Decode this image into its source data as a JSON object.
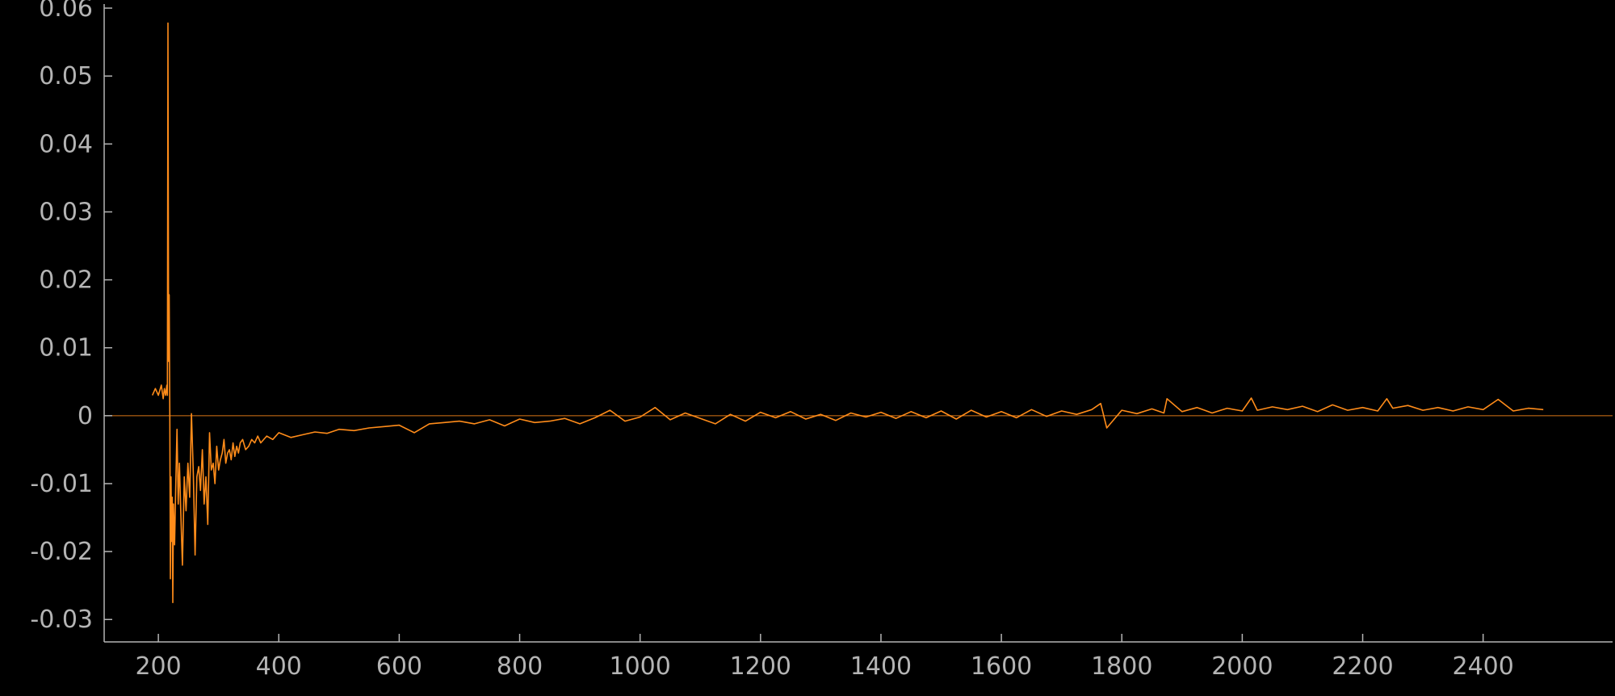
{
  "chart_data": {
    "type": "line",
    "title": "",
    "xlabel": "",
    "ylabel": "",
    "xlim": [
      110,
      2615
    ],
    "ylim": [
      -0.0333,
      0.0606
    ],
    "x_ticks": [
      200,
      400,
      600,
      800,
      1000,
      1200,
      1400,
      1600,
      1800,
      2000,
      2200,
      2400
    ],
    "x_tick_labels": [
      "200",
      "400",
      "600",
      "800",
      "1000",
      "1200",
      "1400",
      "1600",
      "1800",
      "2000",
      "2200",
      "2400"
    ],
    "y_ticks": [
      0.06,
      0.05,
      0.04,
      0.03,
      0.02,
      0.01,
      0,
      -0.01,
      -0.02,
      -0.03
    ],
    "y_tick_labels": [
      "0.06",
      "0.05",
      "0.04",
      "0.03",
      "0.02",
      "0.01",
      "0",
      "-0.01",
      "-0.02",
      "-0.03"
    ],
    "zero_line": 0,
    "grid": false,
    "legend": "none",
    "series_color": "#ff8c1a",
    "axis_color": "#b4b4b4",
    "background": "#000000",
    "series": [
      {
        "x": [
          190,
          195,
          200,
          205,
          208,
          210,
          212,
          214,
          215,
          216,
          217,
          218,
          219,
          220,
          221,
          222,
          223,
          224,
          225,
          227,
          229,
          231,
          233,
          235,
          237,
          240,
          243,
          246,
          249,
          252,
          255,
          258,
          261,
          264,
          267,
          270,
          273,
          276,
          279,
          282,
          285,
          288,
          291,
          294,
          297,
          300,
          303,
          306,
          309,
          312,
          315,
          318,
          321,
          324,
          327,
          330,
          333,
          336,
          340,
          345,
          350,
          355,
          360,
          365,
          370,
          380,
          390,
          400,
          420,
          440,
          460,
          480,
          500,
          525,
          550,
          575,
          600,
          625,
          650,
          675,
          700,
          725,
          750,
          775,
          800,
          825,
          850,
          875,
          900,
          925,
          950,
          975,
          1000,
          1025,
          1050,
          1075,
          1100,
          1125,
          1150,
          1175,
          1200,
          1225,
          1250,
          1275,
          1300,
          1325,
          1350,
          1375,
          1400,
          1425,
          1450,
          1475,
          1500,
          1525,
          1550,
          1575,
          1600,
          1625,
          1650,
          1675,
          1700,
          1725,
          1750,
          1765,
          1775,
          1800,
          1825,
          1850,
          1870,
          1875,
          1900,
          1925,
          1950,
          1975,
          2000,
          2015,
          2025,
          2050,
          2075,
          2100,
          2125,
          2150,
          2175,
          2200,
          2225,
          2240,
          2250,
          2275,
          2300,
          2325,
          2350,
          2375,
          2400,
          2425,
          2450,
          2475,
          2500
        ],
        "y": [
          0.003,
          0.004,
          0.003,
          0.0045,
          0.0025,
          0.004,
          0.003,
          0.0045,
          0.003,
          0.0578,
          0.008,
          0.0178,
          0.0,
          -0.024,
          -0.009,
          -0.0185,
          -0.012,
          -0.0275,
          -0.013,
          -0.019,
          -0.01,
          -0.002,
          -0.013,
          -0.007,
          -0.0135,
          -0.022,
          -0.009,
          -0.014,
          -0.007,
          -0.012,
          0.0003,
          -0.0085,
          -0.0205,
          -0.009,
          -0.0075,
          -0.011,
          -0.005,
          -0.013,
          -0.009,
          -0.016,
          -0.0025,
          -0.008,
          -0.007,
          -0.01,
          -0.0045,
          -0.008,
          -0.0065,
          -0.0055,
          -0.0035,
          -0.007,
          -0.0055,
          -0.005,
          -0.0065,
          -0.004,
          -0.006,
          -0.0045,
          -0.0055,
          -0.004,
          -0.0035,
          -0.005,
          -0.0045,
          -0.0035,
          -0.004,
          -0.003,
          -0.004,
          -0.003,
          -0.0035,
          -0.0025,
          -0.0032,
          -0.0028,
          -0.0024,
          -0.0026,
          -0.002,
          -0.0022,
          -0.0018,
          -0.0016,
          -0.0014,
          -0.0025,
          -0.0012,
          -0.001,
          -0.0008,
          -0.0012,
          -0.0006,
          -0.0015,
          -0.0005,
          -0.001,
          -0.0008,
          -0.0004,
          -0.0012,
          -0.0003,
          0.0008,
          -0.0008,
          -0.0002,
          0.0012,
          -0.0006,
          0.0004,
          -0.0004,
          -0.0012,
          0.0002,
          -0.0008,
          0.0005,
          -0.0003,
          0.0006,
          -0.0005,
          0.0002,
          -0.0007,
          0.0004,
          -0.0002,
          0.0005,
          -0.0004,
          0.0006,
          -0.0003,
          0.0007,
          -0.0005,
          0.0008,
          -0.0002,
          0.0006,
          -0.0003,
          0.0009,
          -0.0001,
          0.0007,
          0.0002,
          0.0009,
          0.0018,
          -0.0018,
          0.0008,
          0.0003,
          0.001,
          0.0004,
          0.0025,
          0.0006,
          0.0012,
          0.0004,
          0.0011,
          0.0007,
          0.0026,
          0.0008,
          0.0013,
          0.0009,
          0.0014,
          0.0006,
          0.0016,
          0.0008,
          0.0012,
          0.0007,
          0.0025,
          0.0011,
          0.0015,
          0.0008,
          0.0012,
          0.0007,
          0.0013,
          0.0009,
          0.0024,
          0.0007,
          0.0011,
          0.0009
        ]
      }
    ]
  }
}
